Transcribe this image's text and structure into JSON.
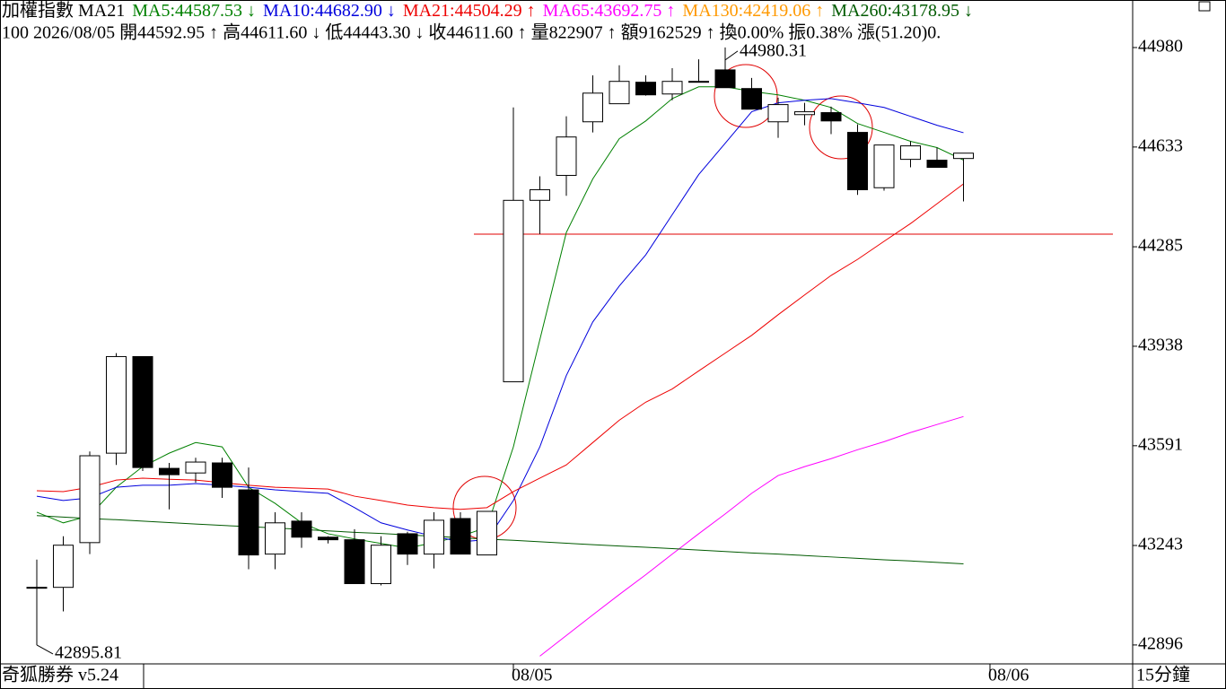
{
  "chart_data": {
    "type": "candlestick",
    "title": "加權指數 MA21",
    "subtitle": "100 2026/08/05 開44592.95 ↑ 高44611.60 ↓ 低44443.30 ↓ 收44611.60 ↑ 量822907 ↑ 額9162529 ↑ 換0.00% 振0.38% 漲(51.20)0.",
    "footer": "奇狐勝券 v5.24",
    "period": "15分鐘",
    "ylim": [
      42830,
      45077
    ],
    "yticks": [
      42896,
      43243,
      43591,
      43938,
      44285,
      44633,
      44980
    ],
    "xticks": [
      {
        "value": 18,
        "label": "08/05"
      },
      {
        "value": 36,
        "label": "08/06"
      }
    ],
    "up_color": "#ffffff",
    "down_color": "#000000",
    "open": [
      43097,
      43097,
      43253,
      43565,
      43902,
      43512,
      43496,
      43531,
      43437,
      43213,
      43328,
      43272,
      43263,
      43110,
      43284,
      43213,
      43337,
      43210,
      43814,
      44447,
      44534,
      44721,
      44784,
      44859,
      44818,
      44862,
      44902,
      44837,
      44721,
      44746,
      44753,
      44684,
      44491,
      44590,
      44587,
      44592.95
    ],
    "high": [
      43194,
      43275,
      43571,
      43914,
      43902,
      43531,
      43549,
      43549,
      43515,
      43359,
      43359,
      43275,
      43300,
      43275,
      43291,
      43359,
      43359,
      43362,
      44771,
      44531,
      44740,
      44883,
      44918,
      44883,
      44908,
      44939,
      44980.31,
      44874,
      44805,
      44787,
      44774,
      44712,
      44640,
      44653,
      44631,
      44611.6
    ],
    "low": [
      42895.81,
      43013,
      43213,
      43524,
      43503,
      43369,
      43462,
      43409,
      43160,
      43160,
      43235,
      43250,
      43110,
      43104,
      43175,
      43163,
      43213,
      43210,
      43814,
      44329,
      44463,
      44684,
      44784,
      44812,
      44796,
      44859,
      44840,
      44765,
      44665,
      44709,
      44678,
      44466,
      44481,
      44562,
      44562,
      44443.3
    ],
    "close": [
      43097,
      43244,
      43556,
      43902,
      43515,
      43490,
      43534,
      43446,
      43210,
      43322,
      43272,
      43263,
      43110,
      43244,
      43213,
      43331,
      43213,
      43362,
      44447,
      44484,
      44668,
      44821,
      44862,
      44815,
      44862,
      44862,
      44840,
      44765,
      44781,
      44756,
      44724,
      44484,
      44640,
      44637,
      44562,
      44611.6
    ],
    "series": [
      {
        "name": "MA5:44587.53 ↓",
        "color": "#008000",
        "values": [
          43359,
          43322,
          43347,
          43446,
          43518,
          43565,
          43602,
          43587,
          43446,
          43390,
          43322,
          43284,
          43266,
          43250,
          43234,
          43253,
          43275,
          43306,
          43587,
          43961,
          44335,
          44522,
          44662,
          44724,
          44802,
          44843,
          44843,
          44827,
          44815,
          44796,
          44771,
          44715,
          44684,
          44653,
          44631,
          44587.53
        ]
      },
      {
        "name": "MA10:44682.90 ↓",
        "color": "#0000dd",
        "values": [
          43415,
          43400,
          43409,
          43446,
          43453,
          43453,
          43459,
          43453,
          43446,
          43437,
          43431,
          43425,
          43375,
          43322,
          43297,
          43275,
          43256,
          43263,
          43400,
          43587,
          43836,
          44023,
          44148,
          44257,
          44397,
          44537,
          44646,
          44756,
          44787,
          44796,
          44802,
          44787,
          44771,
          44740,
          44709,
          44682.9
        ]
      },
      {
        "name": "MA21:44504.29 ↑",
        "color": "#ee0000",
        "values": [
          43434,
          43431,
          43446,
          43471,
          43478,
          43474,
          43471,
          43462,
          43453,
          43446,
          43443,
          43440,
          43415,
          43400,
          43384,
          43375,
          43369,
          43375,
          43431,
          43478,
          43524,
          43602,
          43680,
          43743,
          43789,
          43852,
          43914,
          43976,
          44048,
          44117,
          44185,
          44241,
          44304,
          44366,
          44435,
          44504.29
        ]
      },
      {
        "name": "MA65:43692.75 ↑",
        "color": "#ff00ff",
        "values": [
          null,
          null,
          null,
          null,
          null,
          null,
          null,
          null,
          null,
          null,
          null,
          null,
          null,
          null,
          null,
          null,
          null,
          null,
          null,
          42857,
          42929,
          43001,
          43072,
          43141,
          43213,
          43284,
          43353,
          43425,
          43487,
          43518,
          43546,
          43577,
          43605,
          43637,
          43665,
          43692.75
        ]
      },
      {
        "name": "MA130:42419.06 ↑",
        "color": "#ff9900",
        "values": [
          null,
          null,
          null,
          null,
          null,
          null,
          null,
          null,
          null,
          null,
          null,
          null,
          null,
          null,
          null,
          null,
          null,
          null,
          null,
          null,
          null,
          null,
          null,
          null,
          null,
          null,
          null,
          null,
          null,
          null,
          null,
          null,
          null,
          null,
          null,
          null
        ]
      },
      {
        "name": "MA260:43178.95 ↓",
        "color": "#005a00",
        "values": [
          43347,
          43342,
          43337,
          43333,
          43328,
          43323,
          43318,
          43313,
          43309,
          43304,
          43299,
          43294,
          43289,
          43285,
          43280,
          43275,
          43270,
          43265,
          43261,
          43256,
          43251,
          43246,
          43241,
          43237,
          43232,
          43227,
          43222,
          43217,
          43213,
          43208,
          43203,
          43198,
          43193,
          43189,
          43184,
          43178.95
        ]
      }
    ],
    "annotations": [
      44980.31,
      42895.81
    ],
    "reference_line": {
      "value": 44329,
      "color": "#e00000"
    }
  }
}
